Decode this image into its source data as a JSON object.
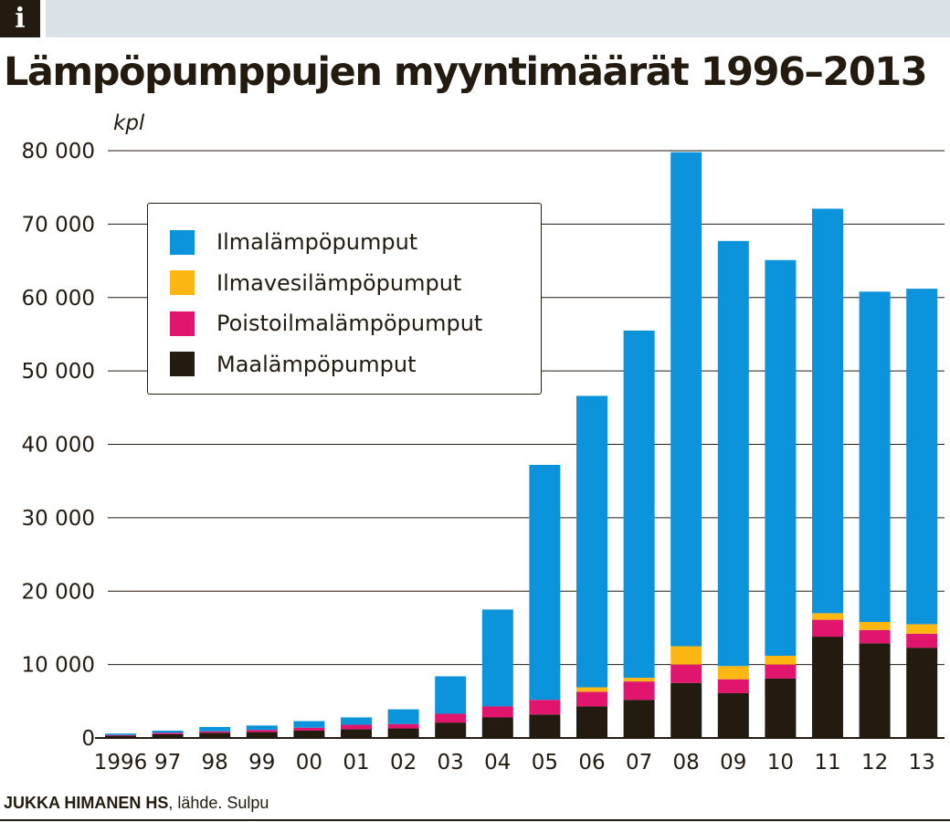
{
  "header": {
    "info_badge": "i"
  },
  "chart_data": {
    "type": "bar",
    "stacked": true,
    "title": "Lämpöpumppujen myyntimäärät 1996–2013",
    "ylabel": "kpl",
    "xlabel": "",
    "ylim": [
      0,
      80000
    ],
    "yticks": [
      0,
      10000,
      20000,
      30000,
      40000,
      50000,
      60000,
      70000,
      80000
    ],
    "ytick_labels": [
      "0",
      "10 000",
      "20 000",
      "30 000",
      "40 000",
      "50 000",
      "60 000",
      "70 000",
      "80 000"
    ],
    "categories": [
      "1996",
      "97",
      "98",
      "99",
      "00",
      "01",
      "02",
      "03",
      "04",
      "05",
      "06",
      "07",
      "08",
      "09",
      "10",
      "11",
      "12",
      "13"
    ],
    "series": [
      {
        "name": "Maalämpöpumput",
        "color": "#231a10",
        "values": [
          300,
          500,
          700,
          800,
          1000,
          1200,
          1300,
          2100,
          2800,
          3200,
          4300,
          5200,
          7500,
          6100,
          8100,
          13800,
          12900,
          12300
        ]
      },
      {
        "name": "Poistoilmalämpöpumput",
        "color": "#e2156e",
        "values": [
          100,
          200,
          200,
          300,
          400,
          600,
          600,
          1200,
          1500,
          2000,
          2000,
          2500,
          2500,
          1900,
          1900,
          2300,
          1800,
          1900
        ]
      },
      {
        "name": "Ilmavesilämpöpumput",
        "color": "#fcb713",
        "values": [
          0,
          0,
          0,
          0,
          0,
          0,
          0,
          0,
          0,
          0,
          600,
          500,
          2500,
          1800,
          1200,
          900,
          1100,
          1300
        ]
      },
      {
        "name": "Ilmalämpöpumput",
        "color": "#0b93db",
        "values": [
          200,
          300,
          600,
          600,
          900,
          1000,
          2000,
          5100,
          13200,
          32000,
          39700,
          47300,
          67300,
          57900,
          53900,
          55100,
          45000,
          45700
        ]
      }
    ],
    "legend_position": "upper-left",
    "grid": true
  },
  "legend": {
    "items": [
      {
        "label": "Ilmalämpöpumput",
        "color": "#0b93db"
      },
      {
        "label": "Ilmavesilämpöpumput",
        "color": "#fcb713"
      },
      {
        "label": "Poistoilmalämpöpumput",
        "color": "#e2156e"
      },
      {
        "label": "Maalämpöpumput",
        "color": "#231a10"
      }
    ]
  },
  "footer": {
    "credit_author": "JUKKA HIMANEN HS",
    "credit_source": " lähde. Sulpu"
  }
}
